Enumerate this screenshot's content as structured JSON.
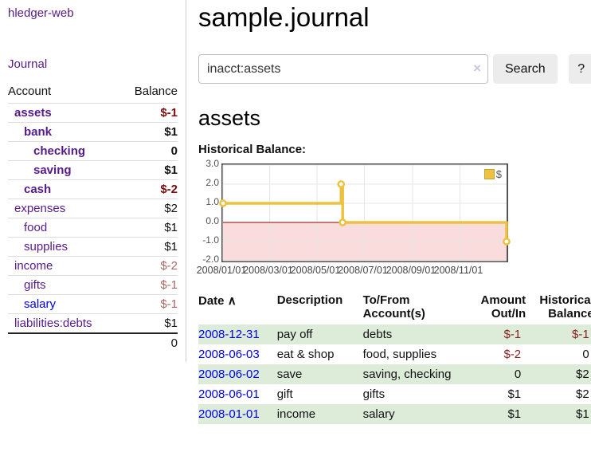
{
  "sidebar": {
    "app_title": "hledger-web",
    "nav_journal": "Journal",
    "accounts": {
      "header_account": "Account",
      "header_balance": "Balance",
      "rows": [
        {
          "name": "assets",
          "depth": 1,
          "bold": true,
          "balance": "$-1",
          "balance_class": "neg-strong"
        },
        {
          "name": "bank",
          "depth": 2,
          "bold": true,
          "balance": "$1",
          "balance_class": ""
        },
        {
          "name": "checking",
          "depth": 3,
          "bold": true,
          "balance": "0",
          "balance_class": ""
        },
        {
          "name": "saving",
          "depth": 3,
          "bold": true,
          "balance": "$1",
          "balance_class": ""
        },
        {
          "name": "cash",
          "depth": 2,
          "bold": true,
          "balance": "$-2",
          "balance_class": "neg-strong"
        },
        {
          "name": "expenses",
          "depth": 1,
          "bold": false,
          "balance": "$2",
          "balance_class": ""
        },
        {
          "name": "food",
          "depth": 2,
          "bold": false,
          "balance": "$1",
          "balance_class": ""
        },
        {
          "name": "supplies",
          "depth": 2,
          "bold": false,
          "balance": "$1",
          "balance_class": ""
        },
        {
          "name": "income",
          "depth": 1,
          "bold": false,
          "balance": "$-2",
          "balance_class": "neg-muted"
        },
        {
          "name": "gifts",
          "depth": 2,
          "bold": false,
          "balance": "$-1",
          "balance_class": "neg-muted"
        },
        {
          "name": "salary",
          "depth": 2,
          "bold": false,
          "link_class": "blue",
          "balance": "$-1",
          "balance_class": "neg-muted"
        },
        {
          "name": "liabilities:debts",
          "depth": 1,
          "bold": false,
          "balance": "$1",
          "balance_class": ""
        }
      ],
      "total": "0"
    }
  },
  "main": {
    "title": "sample.journal",
    "search": {
      "value": "inacct:assets",
      "clear_icon": "×",
      "button_label": "Search",
      "help_label": "?"
    },
    "account_heading": "assets",
    "chart_label": "Historical Balance:",
    "register": {
      "headers": [
        {
          "lines": [
            "Date"
          ],
          "sort": "∧",
          "align": ""
        },
        {
          "lines": [
            "Description"
          ],
          "align": ""
        },
        {
          "lines": [
            "To/From",
            "Account(s)"
          ],
          "align": ""
        },
        {
          "lines": [
            "Amount",
            "Out/In"
          ],
          "align": "r"
        },
        {
          "lines": [
            "Historical",
            "Balance"
          ],
          "align": "r"
        }
      ],
      "rows": [
        {
          "date": "2008-12-31",
          "description": "pay off",
          "accounts": "debts",
          "amount": "$-1",
          "amount_class": "neg",
          "balance": "$-1",
          "balance_class": "neg",
          "shaded": true
        },
        {
          "date": "2008-06-03",
          "description": "eat & shop",
          "accounts": "food, supplies",
          "amount": "$-2",
          "amount_class": "neg",
          "balance": "0",
          "balance_class": "",
          "shaded": false
        },
        {
          "date": "2008-06-02",
          "description": "save",
          "accounts": "saving, checking",
          "amount": "0",
          "amount_class": "",
          "balance": "$2",
          "balance_class": "",
          "shaded": true
        },
        {
          "date": "2008-06-01",
          "description": "gift",
          "accounts": "gifts",
          "amount": "$1",
          "amount_class": "",
          "balance": "$2",
          "balance_class": "",
          "shaded": false
        },
        {
          "date": "2008-01-01",
          "description": "income",
          "accounts": "salary",
          "amount": "$1",
          "amount_class": "",
          "balance": "$1",
          "balance_class": "",
          "shaded": true
        }
      ]
    }
  },
  "chart_data": {
    "type": "line",
    "title": "Historical Balance",
    "step": true,
    "series": [
      {
        "name": "$",
        "points": [
          [
            "2008-01-01",
            1.0
          ],
          [
            "2008-06-01",
            2.0
          ],
          [
            "2008-06-03",
            0.0
          ],
          [
            "2008-12-31",
            -1.0
          ]
        ]
      }
    ],
    "x_range": [
      "2008-01-01",
      "2008-12-31"
    ],
    "x_ticks": [
      {
        "date": "2008-01-01",
        "label": "2008/01/01"
      },
      {
        "date": "2008-03-01",
        "label": "2008/03/01"
      },
      {
        "date": "2008-05-01",
        "label": "2008/05/01"
      },
      {
        "date": "2008-07-01",
        "label": "2008/07/01"
      },
      {
        "date": "2008-09-01",
        "label": "2008/09/01"
      },
      {
        "date": "2008-11-01",
        "label": "2008/11/01"
      }
    ],
    "y_ticks": [
      3.0,
      2.0,
      1.0,
      0.0,
      -1.0,
      -2.0
    ],
    "ylim": [
      -2.0,
      3.0
    ],
    "grid": true,
    "legend": {
      "position": "top-right",
      "label": "$"
    },
    "colors": {
      "line": "#edc240",
      "marker_fill": "#ffffff",
      "negative_region": "#fbdcdc",
      "zero_line": "#8b0000",
      "grid": "#e6e6e6",
      "border": "#545454",
      "tick_text": "#545454"
    }
  }
}
